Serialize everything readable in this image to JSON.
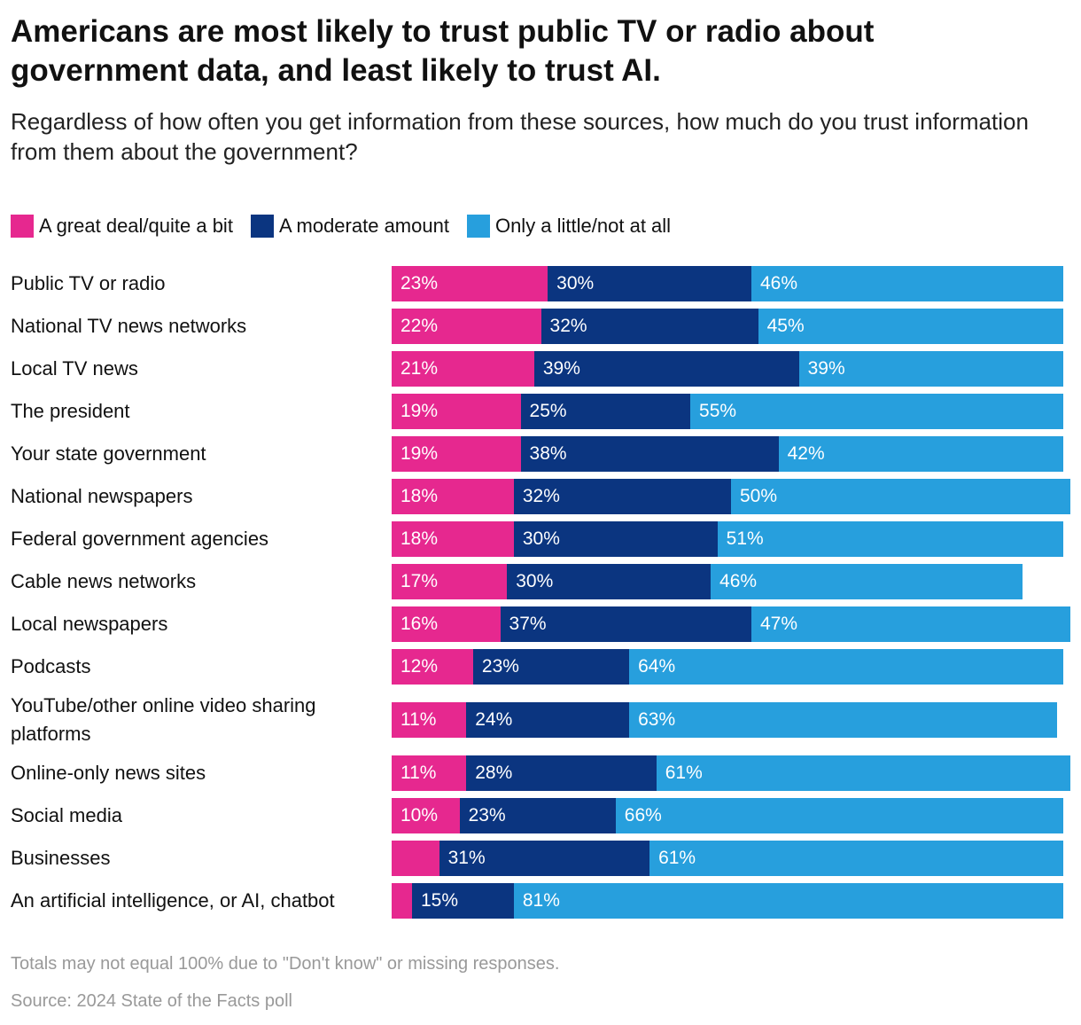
{
  "chart_data": {
    "type": "stacked-bar",
    "orientation": "horizontal",
    "title": "Americans are most likely to trust public TV or radio about government data, and least likely to trust AI.",
    "subtitle": "Regardless of how often you get information from these sources, how much do you trust information from them about the government?",
    "legend": "top-left",
    "xlim": [
      0,
      100
    ],
    "categories": [
      "Public TV or radio",
      "National TV news networks",
      "Local TV news",
      "The president",
      "Your state government",
      "National newspapers",
      "Federal government agencies",
      "Cable news networks",
      "Local newspapers",
      "Podcasts",
      "YouTube/other online video sharing platforms",
      "Online-only news sites",
      "Social media",
      "Businesses",
      "An artificial intelligence, or AI, chatbot"
    ],
    "series": [
      {
        "name": "A great deal/quite a bit",
        "color": "#e6288f",
        "values": [
          23,
          22,
          21,
          19,
          19,
          18,
          18,
          17,
          16,
          12,
          11,
          11,
          10,
          7,
          3
        ],
        "value_labels": [
          "23%",
          "22%",
          "21%",
          "19%",
          "19%",
          "18%",
          "18%",
          "17%",
          "16%",
          "12%",
          "11%",
          "11%",
          "10%",
          null,
          null
        ]
      },
      {
        "name": "A moderate amount",
        "color": "#0b3580",
        "values": [
          30,
          32,
          39,
          25,
          38,
          32,
          30,
          30,
          37,
          23,
          24,
          28,
          23,
          31,
          15
        ],
        "value_labels": [
          "30%",
          "32%",
          "39%",
          "25%",
          "38%",
          "32%",
          "30%",
          "30%",
          "37%",
          "23%",
          "24%",
          "28%",
          "23%",
          "31%",
          "15%"
        ]
      },
      {
        "name": "Only a little/not at all",
        "color": "#279fdd",
        "values": [
          46,
          45,
          39,
          55,
          42,
          50,
          51,
          46,
          47,
          64,
          63,
          61,
          66,
          61,
          81
        ],
        "value_labels": [
          "46%",
          "45%",
          "39%",
          "55%",
          "42%",
          "50%",
          "51%",
          "46%",
          "47%",
          "64%",
          "63%",
          "61%",
          "66%",
          "61%",
          "81%"
        ]
      }
    ],
    "note": "Totals may not equal 100% due to \"Don't know\" or missing responses.",
    "source": "Source: 2024 State of the Facts poll"
  }
}
